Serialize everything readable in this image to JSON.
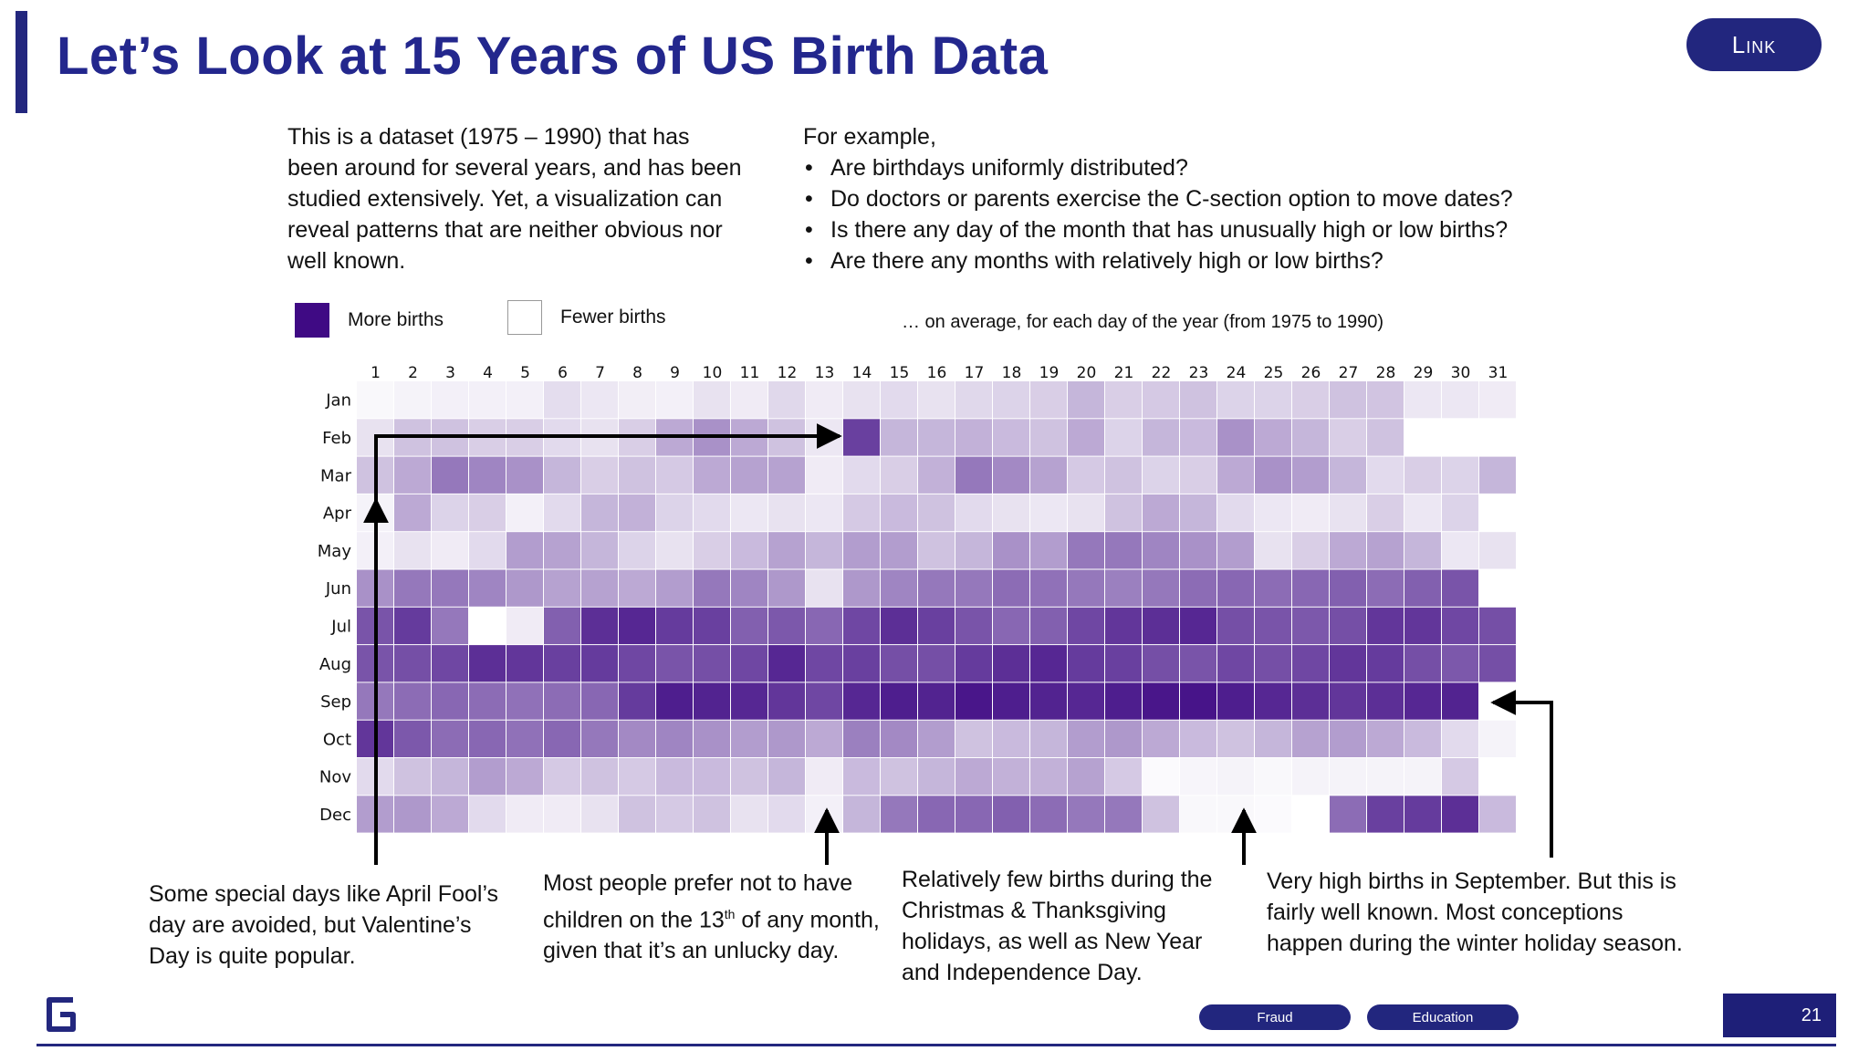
{
  "slide": {
    "title": "Let’s Look at 15 Years of US Birth Data",
    "link_label": "Link",
    "intro": "This is a dataset (1975 – 1990) that has been around for several years, and has been studied extensively. Yet, a visualization can reveal patterns that are neither obvious nor well known.",
    "example_lead": "For example,",
    "questions": [
      "Are birthdays uniformly distributed?",
      "Do doctors or parents exercise the C-section option to move dates?",
      "Is there any day of the month that has unusually high or low births?",
      "Are there any months with relatively high or low births?"
    ],
    "average_note": "… on average, for each day of the year (from 1975 to 1990)",
    "legend": {
      "more": "More births",
      "fewer": "Fewer births"
    },
    "annotations": {
      "special_days": "Some special days like April Fool’s day are avoided, but Valentine’s Day is quite popular.",
      "thirteenth_pre": "Most people prefer not to have children on the 13",
      "thirteenth_sup": "th",
      "thirteenth_post": " of any month, given that it’s an unlucky day.",
      "holidays": "Relatively few births during the Christmas & Thanksgiving holidays, as well as New Year and Independence Day.",
      "september": "Very high births in September. But this is fairly well known. Most conceptions happen during the winter holiday season."
    },
    "footer": {
      "tags": [
        "Fraud",
        "Education"
      ],
      "page_number": "21"
    },
    "colors": {
      "brand": "#23278d",
      "more_births": "#3f0a84",
      "fewer_births": "#ffffff"
    }
  },
  "chart_data": {
    "type": "heatmap",
    "x": [
      "1",
      "2",
      "3",
      "4",
      "5",
      "6",
      "7",
      "8",
      "9",
      "10",
      "11",
      "12",
      "13",
      "14",
      "15",
      "16",
      "17",
      "18",
      "19",
      "20",
      "21",
      "22",
      "23",
      "24",
      "25",
      "26",
      "27",
      "28",
      "29",
      "30",
      "31"
    ],
    "y": [
      "Jan",
      "Feb",
      "Mar",
      "Apr",
      "May",
      "Jun",
      "Jul",
      "Aug",
      "Sep",
      "Oct",
      "Nov",
      "Dec"
    ],
    "scale": "0 = fewer births (white), 1 = more births (dark purple)",
    "values": [
      [
        0.03,
        0.05,
        0.06,
        0.06,
        0.06,
        0.14,
        0.1,
        0.07,
        0.06,
        0.12,
        0.08,
        0.16,
        0.08,
        0.12,
        0.15,
        0.12,
        0.16,
        0.18,
        0.2,
        0.3,
        0.2,
        0.22,
        0.25,
        0.18,
        0.18,
        0.2,
        0.25,
        0.24,
        0.1,
        0.1,
        0.08
      ],
      [
        0.12,
        0.25,
        0.25,
        0.2,
        0.2,
        0.15,
        0.12,
        0.2,
        0.35,
        0.45,
        0.35,
        0.25,
        0.1,
        0.78,
        0.3,
        0.3,
        0.32,
        0.28,
        0.25,
        0.35,
        0.18,
        0.3,
        0.28,
        0.45,
        0.35,
        0.3,
        0.2,
        0.25,
        null,
        null,
        null
      ],
      [
        0.25,
        0.35,
        0.55,
        0.5,
        0.45,
        0.3,
        0.2,
        0.25,
        0.22,
        0.35,
        0.38,
        0.38,
        0.08,
        0.15,
        0.2,
        0.32,
        0.55,
        0.48,
        0.38,
        0.22,
        0.25,
        0.18,
        0.2,
        0.35,
        0.45,
        0.4,
        0.3,
        0.15,
        0.2,
        0.18,
        0.3
      ],
      [
        0.05,
        0.35,
        0.18,
        0.2,
        0.06,
        0.15,
        0.3,
        0.32,
        0.18,
        0.15,
        0.1,
        0.12,
        0.1,
        0.22,
        0.28,
        0.25,
        0.15,
        0.12,
        0.1,
        0.12,
        0.25,
        0.35,
        0.3,
        0.15,
        0.1,
        0.08,
        0.12,
        0.2,
        0.1,
        0.18,
        null
      ],
      [
        0.06,
        0.12,
        0.08,
        0.15,
        0.4,
        0.38,
        0.3,
        0.18,
        0.12,
        0.2,
        0.28,
        0.38,
        0.3,
        0.4,
        0.4,
        0.25,
        0.3,
        0.45,
        0.4,
        0.55,
        0.55,
        0.5,
        0.45,
        0.4,
        0.12,
        0.2,
        0.35,
        0.38,
        0.3,
        0.1,
        0.12
      ],
      [
        0.45,
        0.55,
        0.55,
        0.5,
        0.42,
        0.38,
        0.38,
        0.35,
        0.4,
        0.55,
        0.5,
        0.42,
        0.12,
        0.42,
        0.5,
        0.55,
        0.55,
        0.6,
        0.58,
        0.55,
        0.52,
        0.55,
        0.6,
        0.62,
        0.6,
        0.62,
        0.65,
        0.6,
        0.65,
        0.7,
        null
      ],
      [
        0.7,
        0.8,
        0.55,
        0.0,
        0.08,
        0.65,
        0.85,
        0.88,
        0.8,
        0.78,
        0.65,
        0.68,
        0.62,
        0.75,
        0.85,
        0.78,
        0.7,
        0.62,
        0.65,
        0.75,
        0.82,
        0.85,
        0.88,
        0.72,
        0.7,
        0.68,
        0.72,
        0.82,
        0.82,
        0.75,
        0.72
      ],
      [
        0.7,
        0.72,
        0.75,
        0.85,
        0.82,
        0.78,
        0.8,
        0.75,
        0.7,
        0.72,
        0.75,
        0.88,
        0.75,
        0.78,
        0.72,
        0.72,
        0.8,
        0.85,
        0.88,
        0.8,
        0.78,
        0.72,
        0.7,
        0.75,
        0.72,
        0.75,
        0.82,
        0.8,
        0.72,
        0.68,
        0.72
      ],
      [
        0.55,
        0.6,
        0.62,
        0.6,
        0.58,
        0.6,
        0.62,
        0.8,
        0.92,
        0.9,
        0.88,
        0.82,
        0.75,
        0.88,
        0.92,
        0.9,
        0.95,
        0.92,
        0.9,
        0.88,
        0.92,
        0.95,
        0.96,
        0.92,
        0.88,
        0.85,
        0.82,
        0.85,
        0.88,
        0.9,
        null
      ],
      [
        0.82,
        0.68,
        0.6,
        0.62,
        0.58,
        0.62,
        0.55,
        0.48,
        0.5,
        0.45,
        0.4,
        0.42,
        0.35,
        0.52,
        0.48,
        0.4,
        0.25,
        0.28,
        0.3,
        0.4,
        0.42,
        0.35,
        0.28,
        0.25,
        0.3,
        0.38,
        0.4,
        0.35,
        0.28,
        0.15,
        0.05
      ],
      [
        0.15,
        0.25,
        0.3,
        0.4,
        0.35,
        0.22,
        0.25,
        0.22,
        0.28,
        0.28,
        0.25,
        0.3,
        0.08,
        0.28,
        0.25,
        0.3,
        0.35,
        0.32,
        0.32,
        0.38,
        0.22,
        0.02,
        0.04,
        0.05,
        0.03,
        0.05,
        0.05,
        0.05,
        0.05,
        0.22,
        null
      ],
      [
        0.4,
        0.42,
        0.35,
        0.15,
        0.08,
        0.08,
        0.12,
        0.25,
        0.22,
        0.25,
        0.12,
        0.15,
        0.06,
        0.3,
        0.55,
        0.62,
        0.62,
        0.65,
        0.6,
        0.55,
        0.55,
        0.25,
        0.03,
        0.03,
        0.02,
        0.0,
        0.6,
        0.78,
        0.8,
        0.85,
        0.28
      ]
    ]
  }
}
